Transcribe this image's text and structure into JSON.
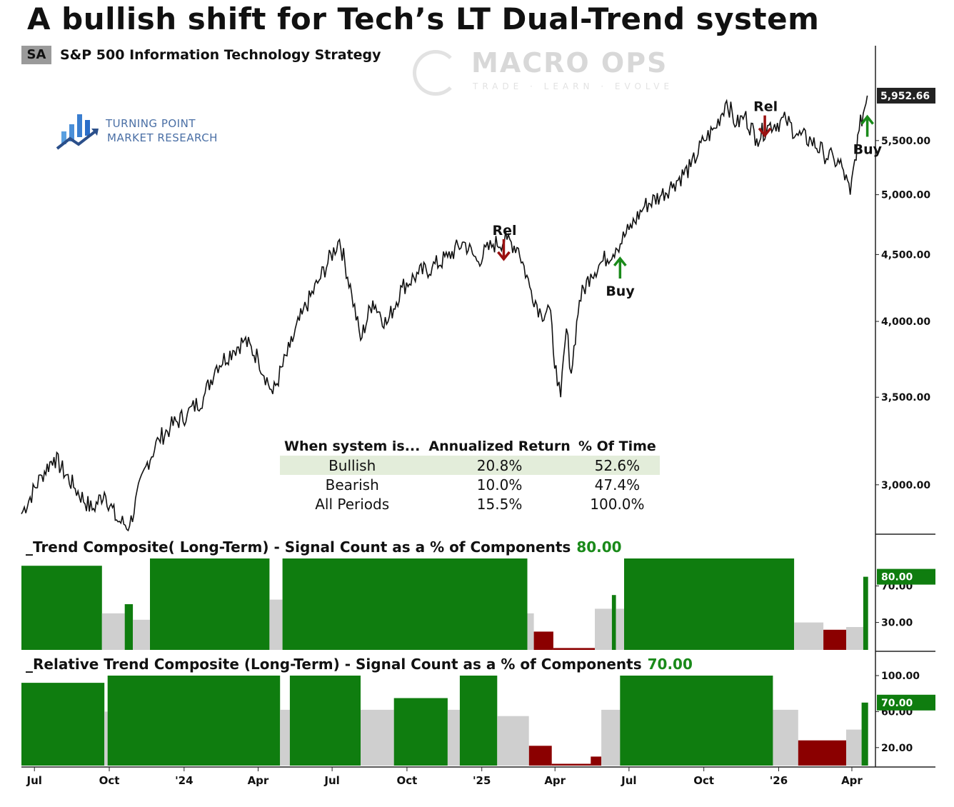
{
  "title": "A bullish shift for Tech’s LT Dual-Trend system",
  "symbol": "SA",
  "subtitle": "S&P 500 Information Technology  Strategy",
  "watermark": {
    "name": "MACRO OPS",
    "tagline": "TRADE · LEARN · EVOLVE"
  },
  "logo": {
    "line1": "TURNING POINT",
    "line2": "MARKET RESEARCH"
  },
  "colors": {
    "bull": "#0f7d0f",
    "neutral": "#cfcfcf",
    "bear": "#8b0000",
    "price": "#111111",
    "rel_arrow": "#9a1010",
    "buy_arrow": "#1a8a1a"
  },
  "stats_table": {
    "headers": [
      "When system is...",
      "Annualized Return",
      "% Of Time"
    ],
    "rows": [
      [
        "Bullish",
        "20.8%",
        "52.6%"
      ],
      [
        "Bearish",
        "10.0%",
        "47.4%"
      ],
      [
        "All Periods",
        "15.5%",
        "100.0%"
      ]
    ],
    "highlight_row": 0
  },
  "chart_data": [
    {
      "type": "line",
      "scale": "log",
      "ylim": [
        2750,
        6500
      ],
      "yticks": [
        3000,
        3500,
        4000,
        4500,
        5000,
        5500
      ],
      "ytick_labels": [
        "3,000.00",
        "3,500.00",
        "4,000.00",
        "4,500.00",
        "5,000.00",
        "5,500.00"
      ],
      "last_value": 5952.66,
      "last_value_label": "5,952.66",
      "x_range": [
        "2023-06-15",
        "2026-04-30"
      ],
      "x_ticks": [
        "2023-07-01",
        "2023-10-01",
        "2024-01-01",
        "2024-04-01",
        "2024-07-01",
        "2024-10-01",
        "2025-01-01",
        "2025-04-01",
        "2025-07-01",
        "2025-10-01",
        "2026-01-01",
        "2026-04-01"
      ],
      "x_tick_labels": [
        "Jul",
        "Oct",
        "'24",
        "Apr",
        "Jul",
        "Oct",
        "'25",
        "Apr",
        "Jul",
        "Oct",
        "'26",
        "Apr"
      ],
      "series": [
        {
          "x": [
            "2023-06-15",
            "2023-07-10",
            "2023-07-25",
            "2023-08-20",
            "2023-09-10",
            "2023-09-25",
            "2023-10-10",
            "2023-10-26",
            "2023-11-15",
            "2023-12-01",
            "2023-12-15",
            "2024-01-05",
            "2024-01-25",
            "2024-02-10",
            "2024-03-01",
            "2024-03-15",
            "2024-04-01",
            "2024-04-19",
            "2024-05-10",
            "2024-05-25",
            "2024-06-15",
            "2024-07-10",
            "2024-07-25",
            "2024-08-05",
            "2024-08-20",
            "2024-09-06",
            "2024-09-25",
            "2024-10-15",
            "2024-11-01",
            "2024-11-20",
            "2024-12-10",
            "2024-12-26",
            "2025-01-15",
            "2025-02-01",
            "2025-02-15",
            "2025-03-01",
            "2025-03-15",
            "2025-03-25",
            "2025-04-04",
            "2025-04-08",
            "2025-04-15",
            "2025-04-21",
            "2025-05-01",
            "2025-05-15",
            "2025-05-30",
            "2025-06-15",
            "2025-07-01",
            "2025-07-20",
            "2025-08-10",
            "2025-08-25",
            "2025-09-15",
            "2025-10-01",
            "2025-10-15",
            "2025-10-29",
            "2025-11-10",
            "2025-11-20",
            "2025-12-05",
            "2025-12-20",
            "2026-01-10",
            "2026-01-25",
            "2026-02-10",
            "2026-02-25",
            "2026-03-10",
            "2026-03-20",
            "2026-03-30",
            "2026-04-10",
            "2026-04-20"
          ],
          "values": [
            2850,
            3050,
            3150,
            2980,
            2870,
            2960,
            2820,
            2790,
            3100,
            3250,
            3320,
            3400,
            3500,
            3700,
            3800,
            3870,
            3750,
            3520,
            3820,
            4050,
            4300,
            4620,
            4200,
            3870,
            4150,
            3980,
            4250,
            4350,
            4400,
            4480,
            4600,
            4450,
            4580,
            4620,
            4550,
            4250,
            4050,
            4100,
            3570,
            3500,
            3950,
            3650,
            4150,
            4350,
            4450,
            4550,
            4700,
            4900,
            5000,
            5100,
            5250,
            5500,
            5620,
            5900,
            5650,
            5750,
            5520,
            5650,
            5700,
            5550,
            5500,
            5380,
            5320,
            5250,
            5000,
            5600,
            5952.66
          ]
        }
      ],
      "annotations": [
        {
          "label": "Rel",
          "date": "2025-01-28",
          "value": 4520,
          "direction": "down"
        },
        {
          "label": "Buy",
          "date": "2025-06-20",
          "value": 4480,
          "direction": "up"
        },
        {
          "label": "Rel",
          "date": "2025-12-15",
          "value": 5620,
          "direction": "down"
        },
        {
          "label": "Buy",
          "date": "2026-04-20",
          "value": 5750,
          "direction": "up"
        }
      ]
    },
    {
      "type": "bar",
      "title_prefix": "_Trend Composite( Long-Term) - Signal Count as a % of Components",
      "current_value_label": "80.00",
      "current_value": 80,
      "yticks": [
        30,
        70
      ],
      "ytick_labels": [
        "30.00",
        "70.00"
      ],
      "ylim": [
        0,
        100
      ],
      "x_range": [
        "2023-06-15",
        "2026-04-30"
      ],
      "segments": [
        {
          "start": "2023-06-15",
          "end": "2023-09-22",
          "state": "bull",
          "level": 92
        },
        {
          "start": "2023-09-22",
          "end": "2023-10-20",
          "state": "neutral",
          "level": 40
        },
        {
          "start": "2023-10-20",
          "end": "2023-10-30",
          "state": "bull",
          "level": 50
        },
        {
          "start": "2023-10-30",
          "end": "2023-11-20",
          "state": "neutral",
          "level": 33
        },
        {
          "start": "2023-11-20",
          "end": "2024-04-15",
          "state": "bull",
          "level": 100
        },
        {
          "start": "2024-04-15",
          "end": "2024-05-01",
          "state": "neutral",
          "level": 55
        },
        {
          "start": "2024-05-01",
          "end": "2025-02-26",
          "state": "bull",
          "level": 100
        },
        {
          "start": "2025-02-26",
          "end": "2025-03-06",
          "state": "neutral",
          "level": 40
        },
        {
          "start": "2025-03-06",
          "end": "2025-03-30",
          "state": "bear",
          "level": 20
        },
        {
          "start": "2025-03-30",
          "end": "2025-05-20",
          "state": "bear",
          "level": 2
        },
        {
          "start": "2025-05-20",
          "end": "2025-06-10",
          "state": "neutral",
          "level": 45
        },
        {
          "start": "2025-06-10",
          "end": "2025-06-15",
          "state": "bull",
          "level": 60
        },
        {
          "start": "2025-06-15",
          "end": "2025-06-25",
          "state": "neutral",
          "level": 45
        },
        {
          "start": "2025-06-25",
          "end": "2026-01-20",
          "state": "bull",
          "level": 100
        },
        {
          "start": "2026-01-20",
          "end": "2026-02-25",
          "state": "neutral",
          "level": 30
        },
        {
          "start": "2026-02-25",
          "end": "2026-03-25",
          "state": "bear",
          "level": 22
        },
        {
          "start": "2026-03-25",
          "end": "2026-04-15",
          "state": "neutral",
          "level": 25
        },
        {
          "start": "2026-04-15",
          "end": "2026-04-21",
          "state": "bull",
          "level": 80
        }
      ]
    },
    {
      "type": "bar",
      "title_prefix": "_Relative Trend Composite (Long-Term) - Signal Count as a % of Components",
      "current_value_label": "70.00",
      "current_value": 70,
      "yticks": [
        20,
        60,
        100
      ],
      "ytick_labels": [
        "20.00",
        "60.00",
        "100.00"
      ],
      "ylim": [
        0,
        100
      ],
      "x_range": [
        "2023-06-15",
        "2026-04-30"
      ],
      "segments": [
        {
          "start": "2023-06-15",
          "end": "2023-09-25",
          "state": "bull",
          "level": 92
        },
        {
          "start": "2023-09-25",
          "end": "2023-09-29",
          "state": "neutral",
          "level": 60
        },
        {
          "start": "2023-09-29",
          "end": "2024-04-28",
          "state": "bull",
          "level": 100
        },
        {
          "start": "2024-04-28",
          "end": "2024-05-10",
          "state": "neutral",
          "level": 62
        },
        {
          "start": "2024-05-10",
          "end": "2024-08-05",
          "state": "bull",
          "level": 100
        },
        {
          "start": "2024-08-05",
          "end": "2024-09-15",
          "state": "neutral",
          "level": 62
        },
        {
          "start": "2024-09-15",
          "end": "2024-11-20",
          "state": "bull",
          "level": 75
        },
        {
          "start": "2024-11-20",
          "end": "2024-12-05",
          "state": "neutral",
          "level": 62
        },
        {
          "start": "2024-12-05",
          "end": "2025-01-20",
          "state": "bull",
          "level": 100
        },
        {
          "start": "2025-01-20",
          "end": "2025-02-28",
          "state": "neutral",
          "level": 55
        },
        {
          "start": "2025-02-28",
          "end": "2025-03-28",
          "state": "bear",
          "level": 22
        },
        {
          "start": "2025-03-28",
          "end": "2025-05-15",
          "state": "bear",
          "level": 2
        },
        {
          "start": "2025-05-15",
          "end": "2025-05-28",
          "state": "bear",
          "level": 10
        },
        {
          "start": "2025-05-28",
          "end": "2025-06-20",
          "state": "neutral",
          "level": 62
        },
        {
          "start": "2025-06-20",
          "end": "2025-12-25",
          "state": "bull",
          "level": 100
        },
        {
          "start": "2025-12-25",
          "end": "2026-01-25",
          "state": "neutral",
          "level": 62
        },
        {
          "start": "2026-01-25",
          "end": "2026-03-25",
          "state": "bear",
          "level": 28
        },
        {
          "start": "2026-03-25",
          "end": "2026-04-13",
          "state": "neutral",
          "level": 40
        },
        {
          "start": "2026-04-13",
          "end": "2026-04-21",
          "state": "bull",
          "level": 70
        }
      ]
    }
  ]
}
